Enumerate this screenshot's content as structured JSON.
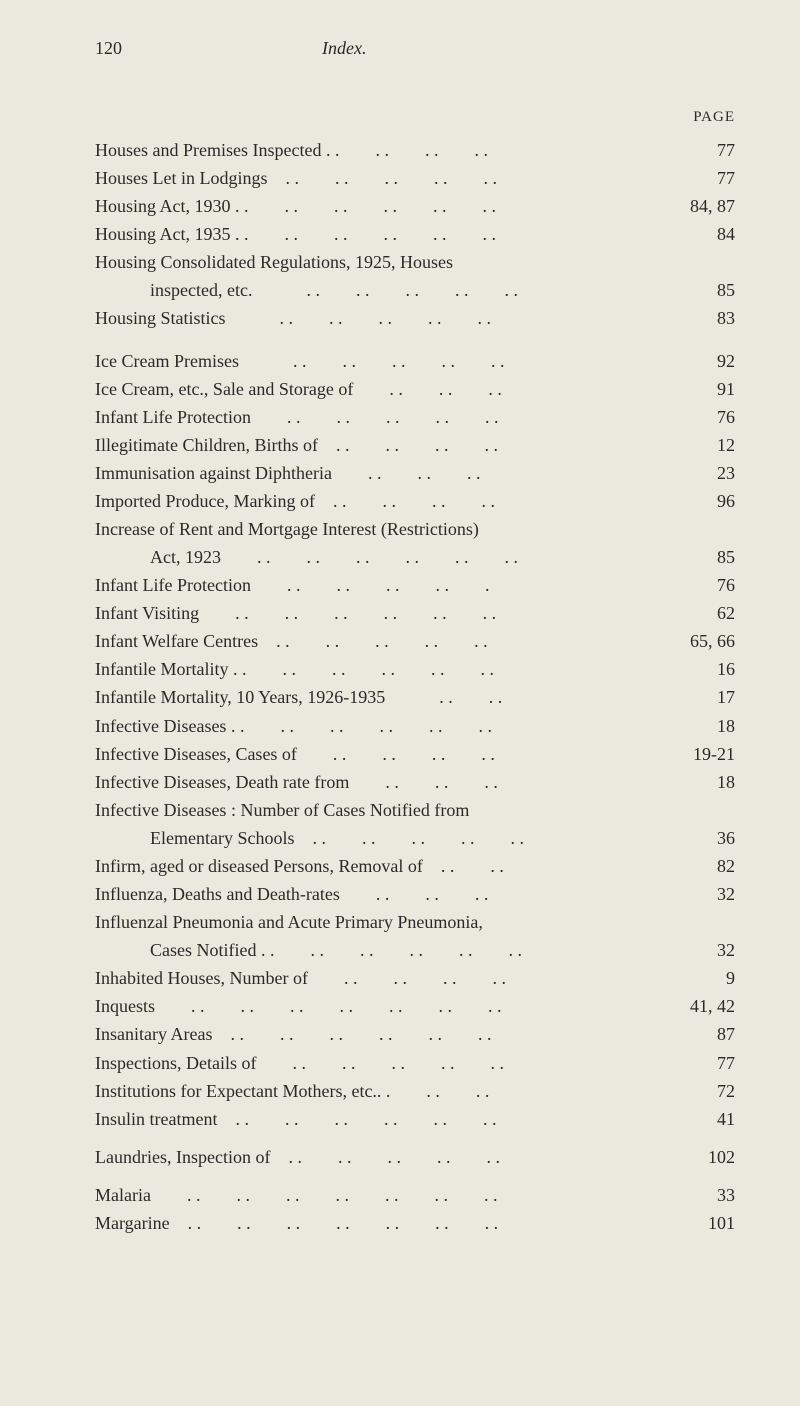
{
  "header": {
    "page_number": "120",
    "title": "Index."
  },
  "page_label": "PAGE",
  "entries": [
    {
      "text": "Houses and Premises Inspected . .  . .  . .  . .",
      "page": "77"
    },
    {
      "text": "Houses Let in Lodgings . .  . .  . .  . .  . .",
      "page": "77"
    },
    {
      "text": "Housing Act, 1930 . .  . .  . .  . .  . .  . .",
      "page": "84, 87"
    },
    {
      "text": "Housing Act, 1935 . .  . .  . .  . .  . .  . .",
      "page": "84"
    },
    {
      "text": "Housing Consolidated Regulations, 1925, Houses",
      "page": ""
    },
    {
      "text": "inspected, etc.   . .  . .  . .  . .  . .",
      "page": "85",
      "continuation": true
    },
    {
      "text": "Housing Statistics   . .  . .  . .  . .  . .",
      "page": "83"
    },
    {
      "gap": true
    },
    {
      "text": "Ice Cream Premises   . .  . .  . .  . .  . .",
      "page": "92"
    },
    {
      "text": "Ice Cream, etc., Sale and Storage of  . .  . .  . .",
      "page": "91"
    },
    {
      "text": "Infant Life Protection  . .  . .  . .  . .  . .",
      "page": "76"
    },
    {
      "text": "Illegitimate Children, Births of . .  . .  . .  . .",
      "page": "12"
    },
    {
      "text": "Immunisation against Diphtheria  . .  . .  . .",
      "page": "23"
    },
    {
      "text": "Imported Produce, Marking of . .  . .  . .  . .",
      "page": "96"
    },
    {
      "text": "Increase of Rent and Mortgage Interest (Restrictions)",
      "page": ""
    },
    {
      "text": "Act, 1923  . .  . .  . .  . .  . .  . .",
      "page": "85",
      "continuation": true
    },
    {
      "text": "Infant Life Protection  . .  . .  . .  . .  .",
      "page": "76"
    },
    {
      "text": "Infant Visiting  . .  . .  . .  . .  . .  . .",
      "page": "62"
    },
    {
      "text": "Infant Welfare Centres . .  . .  . .  . .  . .",
      "page": "65, 66"
    },
    {
      "text": "Infantile Mortality . .  . .  . .  . .  . .  . .",
      "page": "16"
    },
    {
      "text": "Infantile Mortality, 10 Years, 1926-1935   . .  . .",
      "page": "17"
    },
    {
      "text": "Infective Diseases . .  . .  . .  . .  . .  . .",
      "page": "18"
    },
    {
      "text": "Infective Diseases, Cases of  . .  . .  . .  . .",
      "page": "19-21"
    },
    {
      "text": "Infective Diseases, Death rate from  . .  . .  . .",
      "page": "18"
    },
    {
      "text": "Infective Diseases : Number of Cases Notified from",
      "page": ""
    },
    {
      "text": "Elementary Schools . .  . .  . .  . .  . .",
      "page": "36",
      "continuation": true
    },
    {
      "text": "Infirm, aged or diseased Persons, Removal of . .  . .",
      "page": "82"
    },
    {
      "text": "Influenza, Deaths and Death-rates  . .  . .  . .",
      "page": "32"
    },
    {
      "text": "Influenzal Pneumonia and Acute Primary Pneumonia,",
      "page": ""
    },
    {
      "text": "Cases Notified . .  . .  . .  . .  . .  . .",
      "page": "32",
      "continuation": true
    },
    {
      "text": "Inhabited Houses, Number of  . .  . .  . .  . .",
      "page": "9"
    },
    {
      "text": "Inquests  . .  . .  . .  . .  . .  . .  . .",
      "page": "41, 42"
    },
    {
      "text": "Insanitary Areas . .  . .  . .  . .  . .  . .",
      "page": "87"
    },
    {
      "text": "Inspections, Details of  . .  . .  . .  . .  . .",
      "page": "77"
    },
    {
      "text": "Institutions for Expectant Mothers, etc.. .  . .  . .",
      "page": "72"
    },
    {
      "text": "Insulin treatment . .  . .  . .  . .  . .  . .",
      "page": "41"
    },
    {
      "gap": "small"
    },
    {
      "text": "Laundries, Inspection of . .  . .  . .  . .  . .",
      "page": "102"
    },
    {
      "gap": "small"
    },
    {
      "text": "Malaria  . .  . .  . .  . .  . .  . .  . .",
      "page": "33"
    },
    {
      "text": "Margarine . .  . .  . .  . .  . .  . .  . .",
      "page": "101"
    }
  ]
}
